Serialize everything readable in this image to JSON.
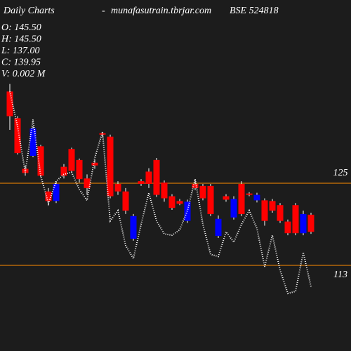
{
  "chart_data": {
    "type": "candlestick",
    "title": "Daily Charts",
    "separator": "-",
    "site": "munafasutrain.tbrjar.com",
    "symbol": "BSE 524818",
    "ohlc_labels": [
      "O: 145.50",
      "H: 145.50",
      "L: 137.00",
      "C: 139.95",
      "V: 0.002  M"
    ],
    "open": [
      138.4,
      134.5,
      127.1,
      129.0,
      130.4,
      123.8,
      122.4,
      127.4,
      130.0,
      128.4,
      125.7,
      128.0,
      132.3,
      131.8,
      124.9,
      123.8,
      116.9,
      125.3,
      126.7,
      128.4,
      125.1,
      123.1,
      122.4,
      119.5,
      124.9,
      124.6,
      124.6,
      117.3,
      123.1,
      120.0,
      124.9,
      123.5,
      122.5,
      122.5,
      122.4,
      121.8,
      119.4,
      121.8,
      117.7,
      120.4
    ],
    "high": [
      139.5,
      134.8,
      127.6,
      133.3,
      130.6,
      124.3,
      125.3,
      127.8,
      130.2,
      128.6,
      126.3,
      128.4,
      132.5,
      132.1,
      125.3,
      124.3,
      120.5,
      125.6,
      127.2,
      128.7,
      125.4,
      123.4,
      122.7,
      122.6,
      125.6,
      124.9,
      124.9,
      120.3,
      123.4,
      123.1,
      125.3,
      123.7,
      123.6,
      122.8,
      122.7,
      122.1,
      119.7,
      122.1,
      121.0,
      120.7
    ],
    "low": [
      132.8,
      129.2,
      126.1,
      128.8,
      125.9,
      122.1,
      122.1,
      125.7,
      126.5,
      125.1,
      123.3,
      127.1,
      131.7,
      122.8,
      123.3,
      120.5,
      116.6,
      124.6,
      124.3,
      123.0,
      122.3,
      121.1,
      121.8,
      119.2,
      124.0,
      122.5,
      120.2,
      117.0,
      122.3,
      119.7,
      120.2,
      123.1,
      122.2,
      118.8,
      120.7,
      119.2,
      117.4,
      117.4,
      117.4,
      117.6
    ],
    "close": [
      134.8,
      129.4,
      126.5,
      133.0,
      126.1,
      122.4,
      124.9,
      126.1,
      126.8,
      125.6,
      124.3,
      127.6,
      132.1,
      123.1,
      123.8,
      121.0,
      120.2,
      124.9,
      124.9,
      123.3,
      122.8,
      121.4,
      122.0,
      122.3,
      124.3,
      122.8,
      120.5,
      119.8,
      122.6,
      122.7,
      120.5,
      123.3,
      123.3,
      119.5,
      121.0,
      119.5,
      117.7,
      117.7,
      120.5,
      117.9
    ],
    "up_color": "#0000ff",
    "down_color": "#ff0000",
    "line": {
      "color": "#ffffff",
      "values": [
        138.4,
        133.3,
        126.6,
        134.3,
        126.1,
        122.0,
        125.3,
        126.3,
        126.6,
        124.1,
        122.5,
        128.7,
        132.5,
        119.5,
        121.0,
        115.9,
        114.0,
        119.0,
        123.6,
        119.5,
        117.6,
        117.4,
        118.2,
        121.0,
        125.6,
        119.0,
        114.6,
        114.3,
        117.9,
        116.4,
        119.0,
        121.0,
        118.4,
        112.8,
        117.4,
        112.3,
        108.9,
        109.2,
        114.9,
        109.9
      ]
    },
    "ylim": [
      100.49,
      151.77
    ],
    "yticks": [
      113,
      125
    ],
    "grid": true,
    "grid_color": "#ff8c00"
  }
}
